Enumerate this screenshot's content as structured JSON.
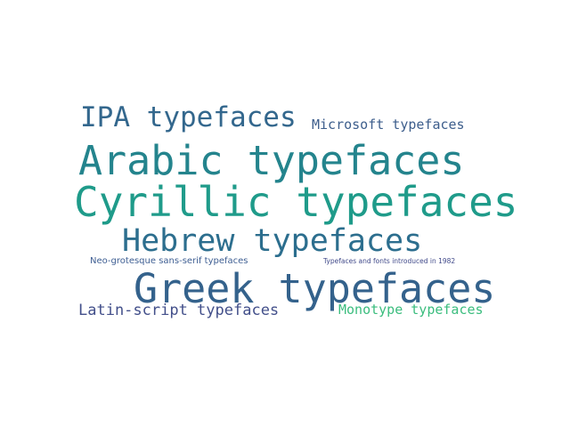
{
  "words": [
    {
      "text": "IPA typefaces",
      "color": "#33678d"
    },
    {
      "text": "Microsoft typefaces",
      "color": "#3d5e8c"
    },
    {
      "text": "Arabic typefaces",
      "color": "#24848d"
    },
    {
      "text": "Cyrillic typefaces",
      "color": "#1f9b8a"
    },
    {
      "text": "Hebrew typefaces",
      "color": "#2c6e8e"
    },
    {
      "text": "Neo-grotesque sans-serif typefaces",
      "color": "#3f5f93"
    },
    {
      "text": "Typefaces and fonts introduced in 1982",
      "color": "#414a8a"
    },
    {
      "text": "Greek typefaces",
      "color": "#34628c"
    },
    {
      "text": "Latin-script typefaces",
      "color": "#424f8a"
    },
    {
      "text": "Monotype typefaces",
      "color": "#3bbd7e"
    }
  ]
}
